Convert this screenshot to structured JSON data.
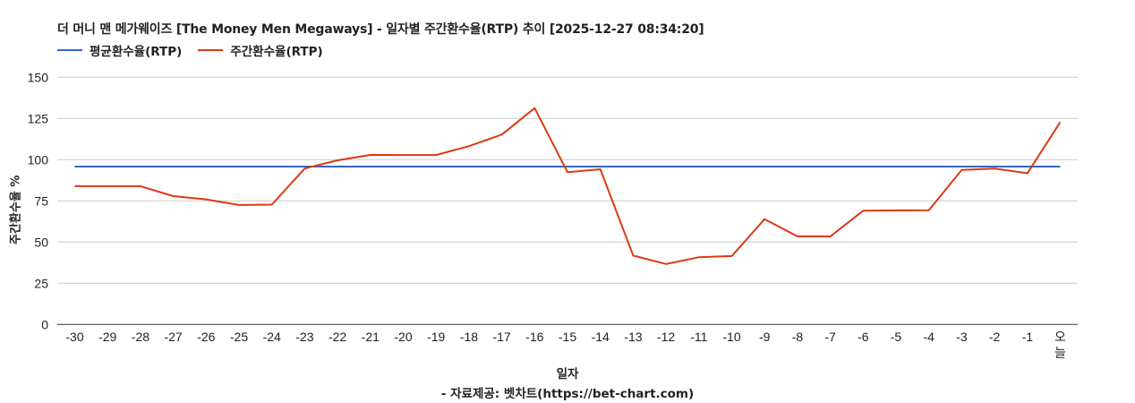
{
  "title": "더 머니 맨 메가웨이즈 [The Money Men Megaways] - 일자별 주간환수율(RTP) 추이 [2025-12-27 08:34:20]",
  "legend": [
    {
      "label": "평균환수율(RTP)",
      "color": "#3366cc"
    },
    {
      "label": "주간환수율(RTP)",
      "color": "#dc3912"
    }
  ],
  "footer": {
    "xlabel": "일자",
    "credit": "- 자료제공: 벳차트(https://bet-chart.com)"
  },
  "chart_data": {
    "type": "line",
    "title": "더 머니 맨 메가웨이즈 [The Money Men Megaways] - 일자별 주간환수율(RTP) 추이 [2025-12-27 08:34:20]",
    "xlabel": "일자",
    "ylabel": "주간환수율 %",
    "ylim": [
      0,
      150
    ],
    "yticks": [
      0,
      25,
      50,
      75,
      100,
      125,
      150
    ],
    "grid": true,
    "legend_position": "top-left",
    "categories": [
      "-30",
      "-29",
      "-28",
      "-27",
      "-26",
      "-25",
      "-24",
      "-23",
      "-22",
      "-21",
      "-20",
      "-19",
      "-18",
      "-17",
      "-16",
      "-15",
      "-14",
      "-13",
      "-12",
      "-11",
      "-10",
      "-9",
      "-8",
      "-7",
      "-6",
      "-5",
      "-4",
      "-3",
      "-2",
      "-1",
      "오늘"
    ],
    "series": [
      {
        "name": "평균환수율(RTP)",
        "color": "#3366cc",
        "values": [
          95.8,
          95.8,
          95.8,
          95.8,
          95.8,
          95.8,
          95.8,
          95.8,
          95.8,
          95.8,
          95.8,
          95.8,
          95.8,
          95.8,
          95.8,
          95.8,
          95.8,
          95.8,
          95.8,
          95.8,
          95.8,
          95.8,
          95.8,
          95.8,
          95.8,
          95.8,
          95.8,
          95.8,
          95.8,
          95.8,
          95.8
        ]
      },
      {
        "name": "주간환수율(RTP)",
        "color": "#dc3912",
        "values": [
          83.9,
          83.9,
          83.9,
          77.9,
          75.9,
          72.5,
          72.7,
          94.6,
          99.6,
          102.9,
          102.8,
          102.8,
          108.2,
          115.2,
          131.3,
          92.4,
          94.2,
          41.8,
          36.7,
          40.8,
          41.5,
          63.9,
          53.4,
          53.4,
          69.0,
          69.2,
          69.3,
          93.8,
          94.6,
          91.8,
          122.8
        ]
      }
    ]
  }
}
